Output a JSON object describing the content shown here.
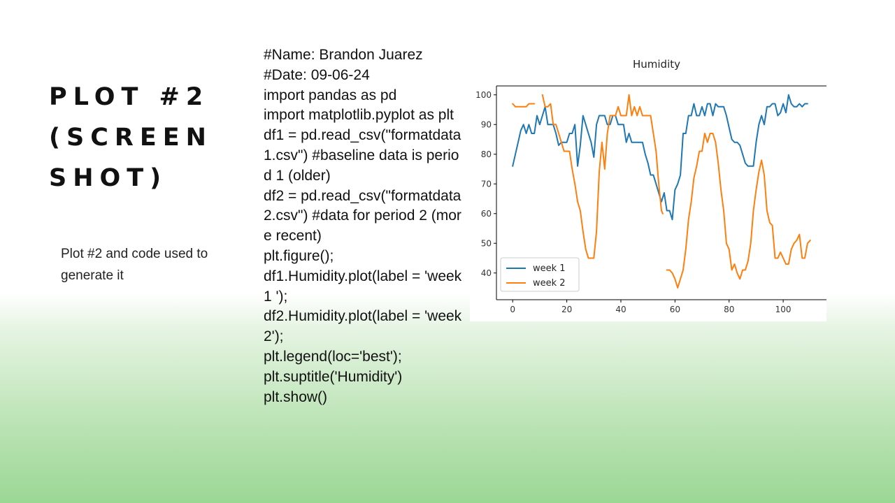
{
  "slide": {
    "title": "PLOT #2\n(SCREEN\nSHOT)",
    "caption": "Plot #2 and code used to generate it"
  },
  "code_lines": [
    "#Name: Brandon Juarez",
    "#Date: 09-06-24",
    "import pandas as pd",
    "import matplotlib.pyplot as plt",
    "df1 = pd.read_csv(\"formatdata1.csv\") #baseline data is period 1 (older)",
    "df2 = pd.read_csv(\"formatdata2.csv\") #data for period 2 (more recent)",
    "plt.figure();",
    "df1.Humidity.plot(label = 'week 1 ');",
    "df2.Humidity.plot(label = 'week 2');",
    "plt.legend(loc='best');",
    "plt.suptitle('Humidity')",
    "plt.show()"
  ],
  "chart_data": {
    "type": "line",
    "title": "Humidity",
    "xlabel": "",
    "ylabel": "",
    "xlim": [
      -6,
      116
    ],
    "ylim": [
      31,
      103
    ],
    "xticks": [
      0,
      20,
      40,
      60,
      80,
      100
    ],
    "yticks": [
      40,
      50,
      60,
      70,
      80,
      90,
      100
    ],
    "grid": false,
    "legend_position": "lower-left",
    "series": [
      {
        "name": "week 1",
        "color": "#1f77b4",
        "points": [
          [
            0,
            76
          ],
          [
            2,
            84
          ],
          [
            3,
            88
          ],
          [
            4,
            90
          ],
          [
            5,
            87
          ],
          [
            6,
            90
          ],
          [
            7,
            87
          ],
          [
            8,
            87
          ],
          [
            9,
            93
          ],
          [
            10,
            90
          ],
          [
            11,
            93
          ],
          [
            12,
            96
          ],
          [
            13,
            90
          ],
          [
            14,
            90
          ],
          [
            15,
            90
          ],
          [
            16,
            87
          ],
          [
            17,
            83
          ],
          [
            18,
            84
          ],
          [
            19,
            84
          ],
          [
            20,
            84
          ],
          [
            21,
            87
          ],
          [
            22,
            87
          ],
          [
            23,
            90
          ],
          [
            24,
            76
          ],
          [
            25,
            83
          ],
          [
            26,
            93
          ],
          [
            27,
            90
          ],
          [
            28,
            87
          ],
          [
            29,
            84
          ],
          [
            30,
            79
          ],
          [
            31,
            90
          ],
          [
            32,
            93
          ],
          [
            33,
            93
          ],
          [
            34,
            93
          ],
          [
            35,
            90
          ],
          [
            36,
            90
          ],
          [
            37,
            93
          ],
          [
            38,
            93
          ],
          [
            39,
            90
          ],
          [
            40,
            90
          ],
          [
            41,
            90
          ],
          [
            42,
            84
          ],
          [
            43,
            87
          ],
          [
            44,
            84
          ],
          [
            45,
            84
          ],
          [
            46,
            84
          ],
          [
            47,
            84
          ],
          [
            48,
            84
          ],
          [
            49,
            80
          ],
          [
            50,
            77
          ],
          [
            51,
            73
          ],
          [
            52,
            73
          ],
          [
            53,
            70
          ],
          [
            54,
            67
          ],
          [
            55,
            64
          ],
          [
            56,
            67
          ],
          [
            57,
            61
          ],
          [
            58,
            61
          ],
          [
            59,
            58
          ],
          [
            60,
            68
          ],
          [
            61,
            70
          ],
          [
            62,
            73
          ],
          [
            63,
            87
          ],
          [
            64,
            87
          ],
          [
            65,
            93
          ],
          [
            66,
            93
          ],
          [
            67,
            97
          ],
          [
            68,
            93
          ],
          [
            69,
            93
          ],
          [
            70,
            96
          ],
          [
            71,
            93
          ],
          [
            72,
            97
          ],
          [
            73,
            97
          ],
          [
            74,
            93
          ],
          [
            75,
            97
          ],
          [
            76,
            96
          ],
          [
            77,
            96
          ],
          [
            78,
            96
          ],
          [
            79,
            93
          ],
          [
            80,
            89
          ],
          [
            81,
            85
          ],
          [
            82,
            84
          ],
          [
            83,
            84
          ],
          [
            84,
            83
          ],
          [
            85,
            80
          ],
          [
            86,
            77
          ],
          [
            87,
            76
          ],
          [
            88,
            76
          ],
          [
            89,
            76
          ],
          [
            90,
            84
          ],
          [
            91,
            90
          ],
          [
            92,
            93
          ],
          [
            93,
            90
          ],
          [
            94,
            96
          ],
          [
            95,
            96
          ],
          [
            96,
            97
          ],
          [
            97,
            97
          ],
          [
            98,
            93
          ],
          [
            99,
            94
          ],
          [
            100,
            97
          ],
          [
            101,
            94
          ],
          [
            102,
            100
          ],
          [
            103,
            97
          ],
          [
            104,
            96
          ],
          [
            105,
            96
          ],
          [
            106,
            97
          ],
          [
            107,
            96
          ],
          [
            108,
            97
          ],
          [
            109,
            97
          ]
        ]
      },
      {
        "name": "week 2",
        "color": "#ff7f0e",
        "points": [
          [
            0,
            97
          ],
          [
            1,
            96
          ],
          [
            2,
            96
          ],
          [
            3,
            96
          ],
          [
            4,
            96
          ],
          [
            5,
            96
          ],
          [
            6,
            97
          ],
          [
            7,
            97
          ],
          [
            8,
            97
          ],
          null,
          [
            11,
            100
          ],
          [
            12,
            96
          ],
          [
            13,
            96
          ],
          [
            14,
            97
          ],
          [
            15,
            90
          ],
          [
            16,
            90
          ],
          [
            17,
            87
          ],
          [
            18,
            84
          ],
          [
            19,
            81
          ],
          [
            20,
            81
          ],
          [
            21,
            81
          ],
          [
            22,
            75
          ],
          [
            23,
            70
          ],
          [
            24,
            64
          ],
          [
            25,
            61
          ],
          [
            26,
            54
          ],
          [
            27,
            48
          ],
          [
            28,
            45
          ],
          [
            29,
            45
          ],
          [
            30,
            45
          ],
          [
            31,
            54
          ],
          [
            32,
            74
          ],
          [
            33,
            84
          ],
          [
            34,
            75
          ],
          [
            35,
            87
          ],
          [
            36,
            93
          ],
          [
            37,
            93
          ],
          [
            38,
            93
          ],
          [
            39,
            96
          ],
          [
            40,
            93
          ],
          [
            41,
            93
          ],
          [
            42,
            93
          ],
          [
            43,
            100
          ],
          [
            44,
            93
          ],
          [
            45,
            96
          ],
          [
            46,
            93
          ],
          [
            47,
            96
          ],
          [
            48,
            93
          ],
          [
            49,
            93
          ],
          [
            50,
            93
          ],
          [
            51,
            93
          ],
          [
            52,
            87
          ],
          [
            53,
            81
          ],
          [
            54,
            70
          ],
          [
            55,
            61
          ],
          [
            55.5,
            60
          ],
          null,
          [
            57,
            41
          ],
          [
            58,
            41
          ],
          [
            59,
            40
          ],
          [
            60,
            38
          ],
          [
            61,
            35
          ],
          [
            62,
            38
          ],
          [
            63,
            41
          ],
          [
            64,
            48
          ],
          [
            65,
            58
          ],
          [
            66,
            64
          ],
          [
            67,
            72
          ],
          [
            68,
            76
          ],
          [
            69,
            81
          ],
          [
            70,
            81
          ],
          [
            71,
            87
          ],
          [
            72,
            84
          ],
          [
            73,
            87
          ],
          [
            74,
            87
          ],
          [
            75,
            84
          ],
          [
            76,
            77
          ],
          [
            77,
            68
          ],
          [
            78,
            61
          ],
          [
            79,
            50
          ],
          [
            80,
            48
          ],
          [
            81,
            41
          ],
          [
            82,
            43
          ],
          [
            83,
            40
          ],
          [
            84,
            38
          ],
          [
            85,
            41
          ],
          [
            86,
            41
          ],
          [
            87,
            44
          ],
          [
            88,
            50
          ],
          [
            89,
            61
          ],
          [
            90,
            68
          ],
          [
            91,
            74
          ],
          [
            92,
            78
          ],
          [
            93,
            73
          ],
          [
            94,
            61
          ],
          [
            95,
            57
          ],
          [
            96,
            56
          ],
          [
            97,
            45
          ],
          [
            98,
            45
          ],
          [
            99,
            47
          ],
          [
            100,
            45
          ],
          [
            101,
            43
          ],
          [
            102,
            43
          ],
          [
            103,
            48
          ],
          [
            104,
            50
          ],
          [
            105,
            51
          ],
          [
            106,
            53
          ],
          [
            107,
            45
          ],
          [
            108,
            45
          ],
          [
            109,
            50
          ],
          [
            110,
            51
          ]
        ]
      }
    ]
  }
}
